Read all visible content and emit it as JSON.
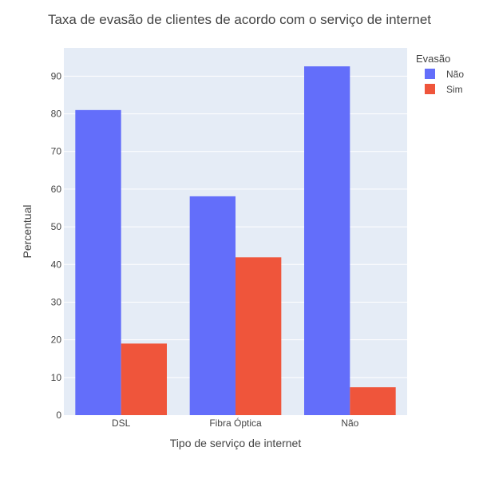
{
  "chart_data": {
    "type": "bar",
    "title": "Taxa de evasão de clientes de acordo com o serviço de internet",
    "xlabel": "Tipo de serviço de internet",
    "ylabel": "Percentual",
    "categories": [
      "DSL",
      "Fibra Óptica",
      "Não"
    ],
    "series": [
      {
        "name": "Não",
        "values": [
          81.0,
          58.1,
          92.6
        ]
      },
      {
        "name": "Sim",
        "values": [
          19.0,
          41.9,
          7.4
        ]
      }
    ],
    "ylim": [
      0,
      97.5
    ],
    "yticks": [
      0,
      10,
      20,
      30,
      40,
      50,
      60,
      70,
      80,
      90
    ],
    "grid": true,
    "legend": {
      "title": "Evasão",
      "placement": "top-right"
    }
  },
  "colors": {
    "series": [
      "#636efa",
      "#ef553b"
    ],
    "plot_background": "#e5ecf6",
    "grid": "#ffffff"
  }
}
